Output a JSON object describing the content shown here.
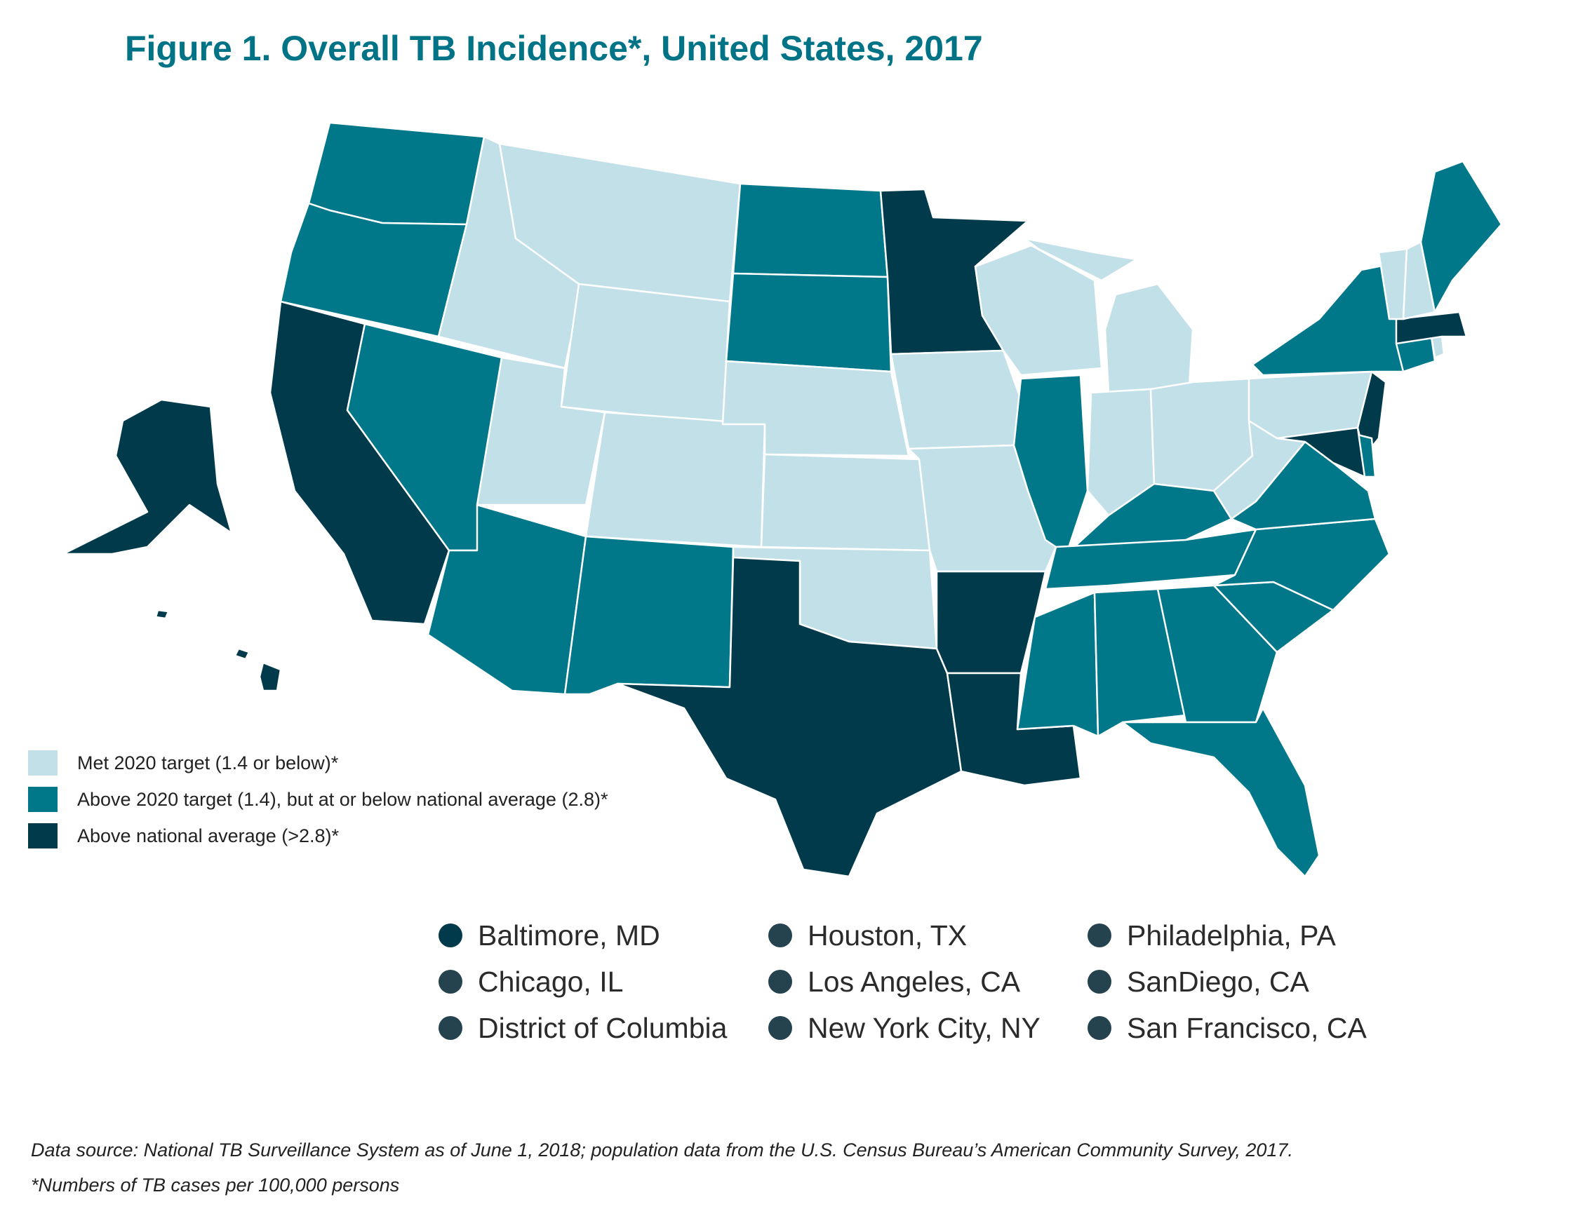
{
  "title": "Figure 1. Overall TB Incidence*, United States, 2017",
  "colors": {
    "met_target": "#c2e0e8",
    "above_target": "#00788a",
    "above_national": "#013a4a",
    "city_dot_dark": "#013a4a",
    "city_dot_gray": "#25434f"
  },
  "legend": [
    {
      "label": "Met 2020 target (1.4 or below)*",
      "category": "met_target"
    },
    {
      "label": "Above 2020 target (1.4), but at or below national average (2.8)*",
      "category": "above_target"
    },
    {
      "label": "Above national average (>2.8)*",
      "category": "above_national"
    }
  ],
  "states": {
    "WA": "above_target",
    "OR": "above_target",
    "CA": "above_national",
    "NV": "above_target",
    "ID": "met_target",
    "MT": "met_target",
    "WY": "met_target",
    "UT": "met_target",
    "AZ": "above_target",
    "CO": "met_target",
    "NM": "above_target",
    "ND": "above_target",
    "SD": "above_target",
    "NE": "met_target",
    "KS": "met_target",
    "OK": "met_target",
    "TX": "above_national",
    "MN": "above_national",
    "IA": "met_target",
    "MO": "met_target",
    "AR": "above_national",
    "LA": "above_national",
    "WI": "met_target",
    "IL": "above_target",
    "MI": "met_target",
    "IN": "met_target",
    "OH": "met_target",
    "KY": "above_target",
    "TN": "above_target",
    "MS": "above_target",
    "AL": "above_target",
    "GA": "above_target",
    "FL": "above_target",
    "SC": "above_target",
    "NC": "above_target",
    "VA": "above_target",
    "WV": "met_target",
    "PA": "met_target",
    "NY": "above_target",
    "VT": "met_target",
    "NH": "met_target",
    "ME": "above_target",
    "MA": "above_national",
    "CT": "above_target",
    "RI": "met_target",
    "NJ": "above_national",
    "DE": "above_target",
    "MD": "above_national",
    "AK": "above_national",
    "HI": "above_national"
  },
  "cities": [
    {
      "label": "Baltimore, MD",
      "dot": "city_dot_dark"
    },
    {
      "label": "Houston, TX",
      "dot": "city_dot_gray"
    },
    {
      "label": "Philadelphia, PA",
      "dot": "city_dot_gray"
    },
    {
      "label": "Chicago, IL",
      "dot": "city_dot_gray"
    },
    {
      "label": "Los Angeles, CA",
      "dot": "city_dot_gray"
    },
    {
      "label": "SanDiego, CA",
      "dot": "city_dot_gray"
    },
    {
      "label": "District of Columbia",
      "dot": "city_dot_gray"
    },
    {
      "label": "New York City, NY",
      "dot": "city_dot_gray"
    },
    {
      "label": "San Francisco, CA",
      "dot": "city_dot_gray"
    }
  ],
  "source": "Data source: National TB Surveillance System as of June 1, 2018; population data from the U.S. Census Bureau’s American Community Survey, 2017.",
  "footnote": "*Numbers of TB cases per 100,000 persons"
}
